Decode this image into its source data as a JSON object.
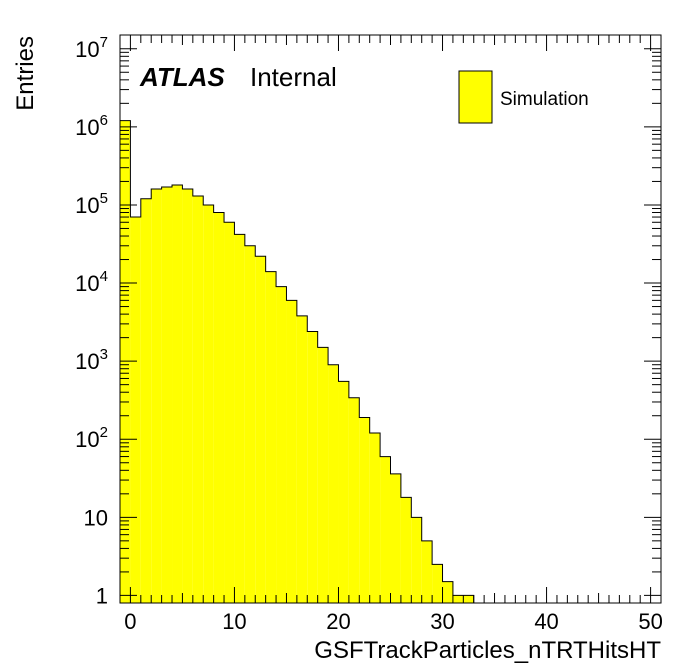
{
  "chart_data": {
    "type": "bar",
    "xlabel": "GSFTrackParticles_nTRTHitsHT",
    "ylabel": "Entries",
    "xlim": [
      -1,
      51
    ],
    "ylim": [
      0.8,
      15000000
    ],
    "log_y": true,
    "bin_width": 1,
    "x_ticks": [
      "0",
      "10",
      "20",
      "30",
      "40",
      "50"
    ],
    "y_ticks": [
      {
        "base": "1",
        "exp": ""
      },
      {
        "base": "10",
        "exp": ""
      },
      {
        "base": "10",
        "exp": "2"
      },
      {
        "base": "10",
        "exp": "3"
      },
      {
        "base": "10",
        "exp": "4"
      },
      {
        "base": "10",
        "exp": "5"
      },
      {
        "base": "10",
        "exp": "6"
      },
      {
        "base": "10",
        "exp": "7"
      }
    ],
    "series": [
      {
        "name": "Simulation",
        "color": "#ffff00",
        "bins_low_edge": [
          -1,
          0,
          1,
          2,
          3,
          4,
          5,
          6,
          7,
          8,
          9,
          10,
          11,
          12,
          13,
          14,
          15,
          16,
          17,
          18,
          19,
          20,
          21,
          22,
          23,
          24,
          25,
          26,
          27,
          28,
          29,
          30,
          31,
          32
        ],
        "values": [
          1200000,
          70000,
          120000,
          160000,
          170000,
          180000,
          160000,
          130000,
          100000,
          80000,
          60000,
          42000,
          30000,
          22000,
          14000,
          9000,
          6000,
          3800,
          2400,
          1500,
          900,
          550,
          340,
          190,
          120,
          60,
          36,
          18,
          10,
          5,
          2.5,
          1.5,
          1,
          1
        ]
      }
    ],
    "legend": {
      "position": "top-right",
      "entries": [
        "Simulation"
      ]
    },
    "annotations": {
      "atlas": "ATLAS",
      "label": "Internal"
    }
  }
}
